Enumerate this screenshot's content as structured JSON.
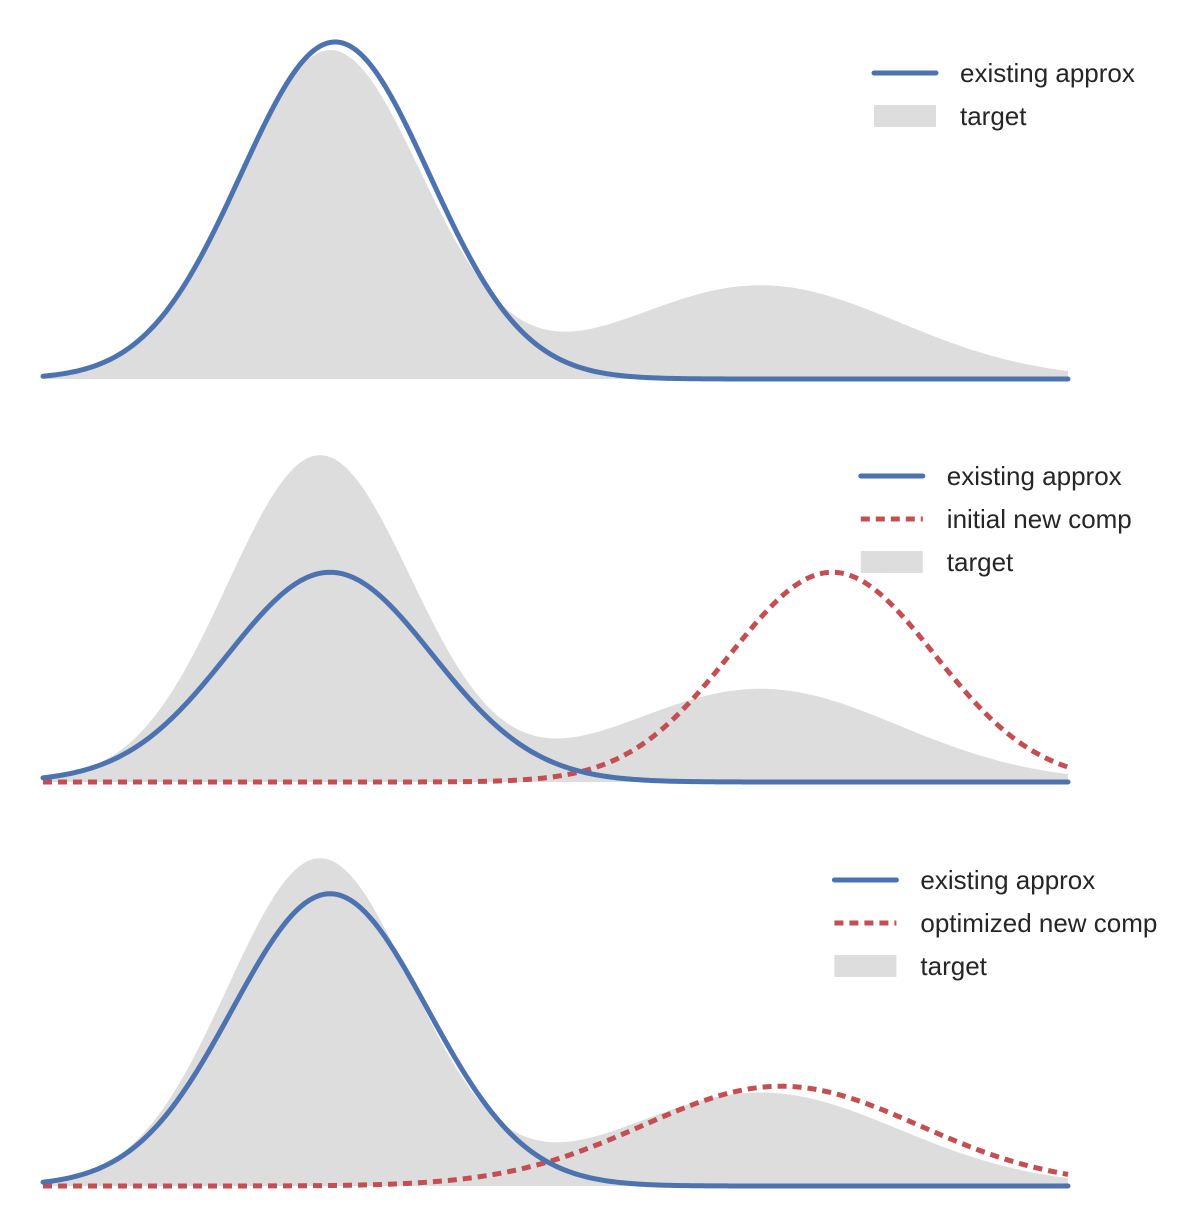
{
  "chart_data": [
    {
      "type": "area",
      "x_range": [
        0,
        10
      ],
      "target": {
        "name": "target",
        "mixture": [
          {
            "weight": 0.7,
            "mean": 2.8,
            "sd": 0.9
          },
          {
            "weight": 0.3,
            "mean": 7.0,
            "sd": 1.35
          }
        ]
      },
      "series": [
        {
          "name": "existing approx",
          "style": "solid",
          "color": "#4c72b0",
          "component": {
            "weight": 0.735,
            "mean": 2.85,
            "sd": 0.92
          }
        }
      ],
      "legend": {
        "position": "top-right",
        "entries": [
          {
            "label": "existing approx",
            "kind": "line",
            "color": "#4c72b0"
          },
          {
            "label": "target",
            "kind": "patch",
            "color": "#dddddd"
          }
        ]
      },
      "ylim": [
        0,
        0.33
      ],
      "grid": false
    },
    {
      "type": "area",
      "x_range": [
        0,
        10
      ],
      "target": {
        "name": "target",
        "mixture": [
          {
            "weight": 0.7,
            "mean": 2.7,
            "sd": 0.9
          },
          {
            "weight": 0.3,
            "mean": 7.0,
            "sd": 1.35
          }
        ]
      },
      "series": [
        {
          "name": "existing approx",
          "style": "solid",
          "color": "#4c72b0",
          "component": {
            "weight": 0.5,
            "mean": 2.8,
            "sd": 1.0
          }
        },
        {
          "name": "initial new comp",
          "style": "dashed",
          "color": "#c44e52",
          "component": {
            "weight": 0.5,
            "mean": 7.7,
            "sd": 1.0
          }
        }
      ],
      "legend": {
        "position": "top-right",
        "entries": [
          {
            "label": "existing approx",
            "kind": "line",
            "color": "#4c72b0"
          },
          {
            "label": "initial new comp",
            "kind": "dashed",
            "color": "#c44e52"
          },
          {
            "label": "target",
            "kind": "patch",
            "color": "#dddddd"
          }
        ]
      },
      "ylim": [
        0,
        0.33
      ],
      "grid": false
    },
    {
      "type": "area",
      "x_range": [
        0,
        10
      ],
      "target": {
        "name": "target",
        "mixture": [
          {
            "weight": 0.7,
            "mean": 2.7,
            "sd": 0.9
          },
          {
            "weight": 0.3,
            "mean": 7.0,
            "sd": 1.35
          }
        ]
      },
      "series": [
        {
          "name": "existing approx",
          "style": "solid",
          "color": "#4c72b0",
          "component": {
            "weight": 0.66,
            "mean": 2.8,
            "sd": 0.95
          }
        },
        {
          "name": "optimized new comp",
          "style": "dashed",
          "color": "#c44e52",
          "component": {
            "weight": 0.32,
            "mean": 7.2,
            "sd": 1.35
          }
        }
      ],
      "legend": {
        "position": "top-right",
        "entries": [
          {
            "label": "existing approx",
            "kind": "line",
            "color": "#4c72b0"
          },
          {
            "label": "optimized new comp",
            "kind": "dashed",
            "color": "#c44e52"
          },
          {
            "label": "target",
            "kind": "patch",
            "color": "#dddddd"
          }
        ]
      },
      "ylim": [
        0,
        0.33
      ],
      "grid": false
    }
  ]
}
